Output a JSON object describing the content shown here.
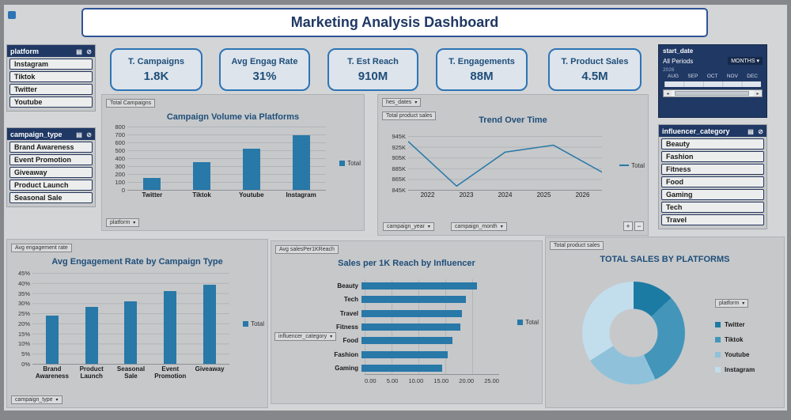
{
  "title": "Marketing Analysis Dashboard",
  "kpis": [
    {
      "label": "T. Campaigns",
      "value": "1.8K"
    },
    {
      "label": "Avg Engag Rate",
      "value": "31%"
    },
    {
      "label": "T. Est Reach",
      "value": "910M"
    },
    {
      "label": "T. Engagements",
      "value": "88M"
    },
    {
      "label": "T. Product Sales",
      "value": "4.5M"
    }
  ],
  "slicers": {
    "platform": {
      "title": "platform",
      "items": [
        "Instagram",
        "Tiktok",
        "Twitter",
        "Youtube"
      ]
    },
    "campaign_type": {
      "title": "campaign_type",
      "items": [
        "Brand Awareness",
        "Event Promotion",
        "Giveaway",
        "Product Launch",
        "Seasonal Sale"
      ]
    },
    "influencer_category": {
      "title": "influencer_category",
      "items": [
        "Beauty",
        "Fashion",
        "Fitness",
        "Food",
        "Gaming",
        "Tech",
        "Travel"
      ]
    }
  },
  "timeline": {
    "title": "start_date",
    "period": "All Periods",
    "granularity": "MONTHS",
    "year": "2026",
    "months": [
      "AUG",
      "SEP",
      "OCT",
      "NOV",
      "DEC"
    ]
  },
  "colors": {
    "accent": "#1f3864",
    "bar": "#2878a8",
    "donut": [
      "#1b7ba3",
      "#4495ba",
      "#8fc2da",
      "#c2ddec"
    ]
  },
  "chart_data": [
    {
      "id": "campaigns-by-platform",
      "type": "bar",
      "title": "Campaign Volume via Platforms",
      "field_label": "Total Campaigns",
      "categories": [
        "Twitter",
        "Tiktok",
        "Youtube",
        "Instagram"
      ],
      "values": [
        150,
        350,
        520,
        690
      ],
      "yticks": [
        "0",
        "100",
        "200",
        "300",
        "400",
        "500",
        "600",
        "700",
        "800"
      ],
      "ymax": 800,
      "legend": "Total",
      "dropdown": "platform"
    },
    {
      "id": "trend-over-time",
      "type": "line",
      "title": "Trend Over Time",
      "field_label": "Total product sales",
      "top_dropdown": "hes_dates",
      "x": [
        "2022",
        "2023",
        "2024",
        "2025",
        "2026"
      ],
      "values": [
        935000,
        852000,
        915000,
        928000,
        878000
      ],
      "yticks": [
        "845K",
        "865K",
        "885K",
        "905K",
        "925K",
        "945K"
      ],
      "ymin": 845000,
      "ymax": 945000,
      "legend": "Total",
      "dropdowns": [
        "campaign_year",
        "campaign_month"
      ],
      "zoom_in": "+",
      "zoom_out": "−"
    },
    {
      "id": "engagement-by-campaign",
      "type": "bar",
      "title": "Avg Engagement Rate by Campaign Type",
      "field_label": "Avg engagement rate",
      "categories": [
        "Brand Awareness",
        "Product Launch",
        "Seasonal Sale",
        "Event Promotion",
        "Giveaway"
      ],
      "values": [
        24,
        28,
        31,
        36,
        39
      ],
      "yticks": [
        "0%",
        "5%",
        "10%",
        "15%",
        "20%",
        "25%",
        "30%",
        "35%",
        "40%",
        "45%"
      ],
      "ymax": 45,
      "legend": "Total",
      "dropdown": "campaign_type"
    },
    {
      "id": "sales-per-1k-reach",
      "type": "hbar",
      "title": "Sales per 1K Reach by Influencer",
      "field_label": "Avg salesPer1KReach",
      "categories": [
        "Beauty",
        "Tech",
        "Travel",
        "Fitness",
        "Food",
        "Fashion",
        "Gaming"
      ],
      "values": [
        21.0,
        19.0,
        18.3,
        18.0,
        16.5,
        15.6,
        14.6
      ],
      "xticks": [
        "0.00",
        "5.00",
        "10.00",
        "15.00",
        "20.00",
        "25.00"
      ],
      "xmax": 25,
      "legend": "Total",
      "dropdown": "influencer_category"
    },
    {
      "id": "total-sales-by-platform",
      "type": "donut",
      "title": "TOTAL SALES BY PLATFORMS",
      "field_label": "Total product  sales",
      "dropdown": "platform",
      "categories": [
        "Twitter",
        "Tiktok",
        "Youtube",
        "Instagram"
      ],
      "values": [
        13,
        30,
        23,
        34
      ]
    }
  ]
}
